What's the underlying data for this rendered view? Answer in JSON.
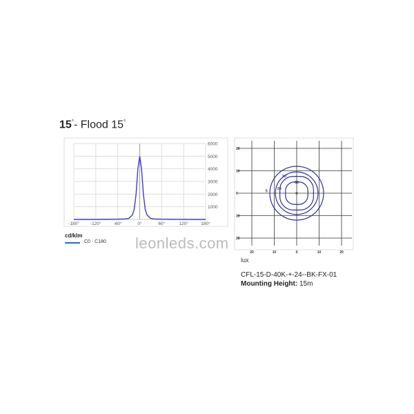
{
  "title": {
    "beam": "15",
    "degree": "°",
    "name": "- Flood 15",
    "name_degree": "°"
  },
  "watermark": "leonleds.com",
  "chart_data": [
    {
      "type": "line",
      "xlabel": "",
      "ylabel": "cd/klm",
      "x_ticks": [
        "-180°",
        "-120°",
        "-60°",
        "0°",
        "60°",
        "120°",
        "180°"
      ],
      "y_ticks": [
        "6000",
        "5000",
        "4000",
        "3000",
        "2000",
        "1000"
      ],
      "xlim": [
        -180,
        180
      ],
      "ylim": [
        0,
        6000
      ],
      "grid": true,
      "series": [
        {
          "name": "C0 - C180",
          "color": "#3a3ad0",
          "x": [
            -180,
            -120,
            -60,
            -40,
            -30,
            -20,
            -15,
            -10,
            -5,
            0,
            5,
            10,
            15,
            20,
            30,
            40,
            60,
            120,
            180
          ],
          "y": [
            0,
            0,
            20,
            40,
            80,
            350,
            800,
            2000,
            4000,
            5000,
            4000,
            2000,
            800,
            350,
            80,
            40,
            20,
            0,
            0
          ]
        }
      ]
    },
    {
      "type": "contour",
      "unit": "lux",
      "x_ticks": [
        "20",
        "10",
        "0",
        "10",
        "20"
      ],
      "y_ticks": [
        "20",
        "10",
        "0",
        "10",
        "20"
      ],
      "levels": [
        {
          "label": "5",
          "radius": 12
        },
        {
          "label": "10",
          "radius": 9.5
        },
        {
          "label": "20",
          "radius": 7.5
        },
        {
          "label": "60",
          "radius": 5
        }
      ],
      "color": "#2e2ea0"
    }
  ],
  "legend": {
    "unit": "cd/klm",
    "series": "C0 - C180"
  },
  "info": {
    "model": "CFL-15-D-40K-+-24--BK-FX-01",
    "mounting_label": "Mounting Height:",
    "mounting_value": "15m"
  }
}
